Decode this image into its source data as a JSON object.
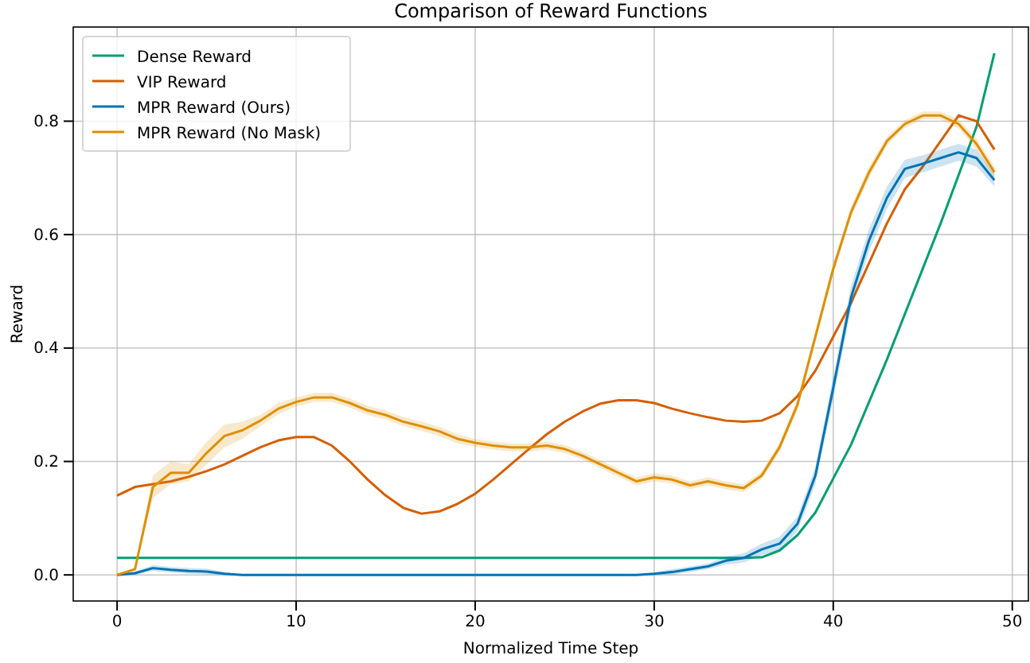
{
  "chart_data": {
    "type": "line",
    "title": "Comparison of Reward Functions",
    "xlabel": "Normalized Time Step",
    "ylabel": "Reward",
    "x": [
      0,
      1,
      2,
      3,
      4,
      5,
      6,
      7,
      8,
      9,
      10,
      11,
      12,
      13,
      14,
      15,
      16,
      17,
      18,
      19,
      20,
      21,
      22,
      23,
      24,
      25,
      26,
      27,
      28,
      29,
      30,
      31,
      32,
      33,
      34,
      35,
      36,
      37,
      38,
      39,
      40,
      41,
      42,
      43,
      44,
      45,
      46,
      47,
      48,
      49
    ],
    "series": [
      {
        "name": "Dense Reward",
        "color": "#029e73",
        "values": [
          0.03,
          0.03,
          0.03,
          0.03,
          0.03,
          0.03,
          0.03,
          0.03,
          0.03,
          0.03,
          0.03,
          0.03,
          0.03,
          0.03,
          0.03,
          0.03,
          0.03,
          0.03,
          0.03,
          0.03,
          0.03,
          0.03,
          0.03,
          0.03,
          0.03,
          0.03,
          0.03,
          0.03,
          0.03,
          0.03,
          0.03,
          0.03,
          0.03,
          0.03,
          0.03,
          0.03,
          0.031,
          0.043,
          0.07,
          0.11,
          0.17,
          0.23,
          0.305,
          0.38,
          0.46,
          0.54,
          0.62,
          0.705,
          0.79,
          0.92
        ]
      },
      {
        "name": "VIP Reward",
        "color": "#d55e00",
        "values": [
          0.14,
          0.155,
          0.16,
          0.165,
          0.173,
          0.183,
          0.195,
          0.21,
          0.225,
          0.237,
          0.243,
          0.243,
          0.228,
          0.2,
          0.168,
          0.14,
          0.118,
          0.108,
          0.112,
          0.125,
          0.143,
          0.168,
          0.195,
          0.222,
          0.248,
          0.27,
          0.288,
          0.302,
          0.308,
          0.308,
          0.303,
          0.293,
          0.285,
          0.278,
          0.272,
          0.27,
          0.272,
          0.285,
          0.315,
          0.36,
          0.42,
          0.48,
          0.55,
          0.62,
          0.68,
          0.72,
          0.765,
          0.81,
          0.8,
          0.75
        ]
      },
      {
        "name": "MPR Reward (Ours)",
        "color": "#0173b2",
        "values": [
          0,
          0.003,
          0.012,
          0.009,
          0.007,
          0.006,
          0.002,
          0,
          0,
          0,
          0,
          0,
          0,
          0,
          0,
          0,
          0,
          0,
          0,
          0,
          0,
          0,
          0,
          0,
          0,
          0,
          0,
          0,
          0,
          0,
          0.002,
          0.005,
          0.01,
          0.015,
          0.025,
          0.03,
          0.045,
          0.055,
          0.09,
          0.175,
          0.33,
          0.49,
          0.59,
          0.665,
          0.716,
          0.725,
          0.735,
          0.745,
          0.735,
          0.696
        ],
        "lower": [
          0,
          0,
          0.007,
          0.004,
          0.002,
          0.001,
          0,
          0,
          0,
          0,
          0,
          0,
          0,
          0,
          0,
          0,
          0,
          0,
          0,
          0,
          0,
          0,
          0,
          0,
          0,
          0,
          0,
          0,
          0,
          0,
          0,
          0,
          0.005,
          0.01,
          0.018,
          0.022,
          0.035,
          0.043,
          0.077,
          0.16,
          0.31,
          0.47,
          0.57,
          0.645,
          0.7,
          0.71,
          0.72,
          0.73,
          0.72,
          0.685
        ],
        "upper": [
          0,
          0.006,
          0.017,
          0.014,
          0.012,
          0.011,
          0.005,
          0,
          0,
          0,
          0,
          0,
          0,
          0,
          0,
          0,
          0,
          0,
          0,
          0,
          0,
          0,
          0,
          0,
          0,
          0,
          0,
          0,
          0,
          0,
          0.004,
          0.01,
          0.015,
          0.02,
          0.032,
          0.038,
          0.055,
          0.067,
          0.103,
          0.19,
          0.35,
          0.51,
          0.61,
          0.685,
          0.732,
          0.74,
          0.75,
          0.76,
          0.75,
          0.707
        ]
      },
      {
        "name": "MPR Reward (No Mask)",
        "color": "#de8f05",
        "values": [
          0,
          0.01,
          0.155,
          0.18,
          0.18,
          0.215,
          0.245,
          0.255,
          0.272,
          0.293,
          0.305,
          0.313,
          0.313,
          0.303,
          0.29,
          0.282,
          0.27,
          0.262,
          0.253,
          0.24,
          0.233,
          0.228,
          0.225,
          0.225,
          0.228,
          0.222,
          0.21,
          0.195,
          0.18,
          0.165,
          0.172,
          0.168,
          0.158,
          0.165,
          0.158,
          0.153,
          0.175,
          0.225,
          0.3,
          0.42,
          0.54,
          0.64,
          0.71,
          0.765,
          0.795,
          0.81,
          0.81,
          0.795,
          0.76,
          0.71
        ],
        "lower": [
          0,
          0.01,
          0.135,
          0.16,
          0.165,
          0.195,
          0.225,
          0.24,
          0.262,
          0.283,
          0.297,
          0.305,
          0.305,
          0.295,
          0.282,
          0.274,
          0.262,
          0.254,
          0.245,
          0.232,
          0.226,
          0.221,
          0.218,
          0.218,
          0.221,
          0.215,
          0.203,
          0.188,
          0.173,
          0.158,
          0.165,
          0.161,
          0.151,
          0.158,
          0.151,
          0.146,
          0.168,
          0.217,
          0.29,
          0.41,
          0.53,
          0.63,
          0.7,
          0.757,
          0.788,
          0.803,
          0.803,
          0.787,
          0.75,
          0.7
        ],
        "upper": [
          0,
          0.01,
          0.175,
          0.2,
          0.195,
          0.235,
          0.265,
          0.27,
          0.282,
          0.303,
          0.313,
          0.321,
          0.321,
          0.311,
          0.298,
          0.29,
          0.278,
          0.27,
          0.261,
          0.248,
          0.24,
          0.235,
          0.232,
          0.232,
          0.235,
          0.229,
          0.217,
          0.202,
          0.187,
          0.172,
          0.179,
          0.175,
          0.165,
          0.172,
          0.165,
          0.16,
          0.182,
          0.233,
          0.31,
          0.43,
          0.55,
          0.65,
          0.72,
          0.773,
          0.802,
          0.817,
          0.817,
          0.803,
          0.77,
          0.72
        ]
      }
    ],
    "xlim": [
      -2.45,
      50.9
    ],
    "ylim": [
      -0.046,
      0.966
    ],
    "xticks": [
      0,
      10,
      20,
      30,
      40,
      50
    ],
    "yticks": [
      {
        "value": 0,
        "label": "0.0"
      },
      {
        "value": 0.2,
        "label": "0.2"
      },
      {
        "value": 0.4,
        "label": "0.4"
      },
      {
        "value": 0.6,
        "label": "0.6"
      },
      {
        "value": 0.8,
        "label": "0.8"
      }
    ],
    "grid": true,
    "legend": "top left",
    "line_style": "solid",
    "marker": "none"
  }
}
